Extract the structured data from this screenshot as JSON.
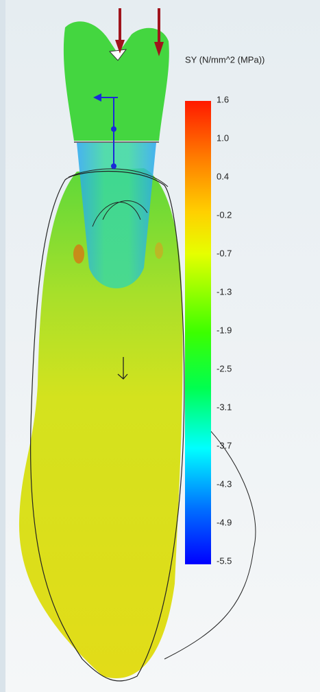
{
  "legend": {
    "title": "SY (N/mm^2 (MPa))",
    "ticks": [
      "1.6",
      "1.0",
      "0.4",
      "-0.2",
      "-0.7",
      "-1.3",
      "-1.9",
      "-2.5",
      "-3.1",
      "-3.7",
      "-4.3",
      "-4.9",
      "-5.5"
    ]
  }
}
